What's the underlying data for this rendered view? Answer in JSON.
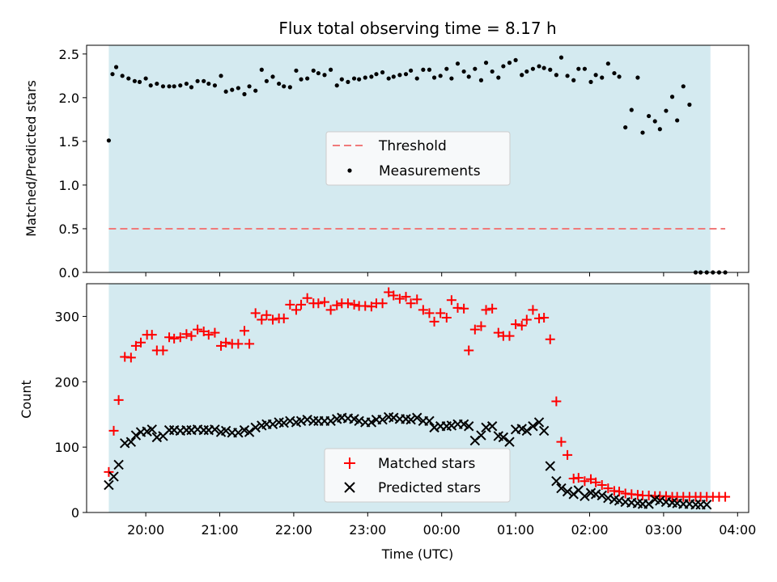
{
  "chart_data": [
    {
      "type": "scatter",
      "title": "Flux total observing time = 8.17 h",
      "ylabel": "Matched/Predicted stars",
      "ylim": [
        0,
        2.6
      ],
      "yticks": [
        0.0,
        0.5,
        1.0,
        1.5,
        2.0,
        2.5
      ],
      "ytick_labels": [
        "0.0",
        "0.5",
        "1.0",
        "1.5",
        "2.0",
        "2.5"
      ],
      "shaded_interval": [
        "19:30",
        "03:38"
      ],
      "shade_color": "#d4eaf0",
      "legend_position": "center",
      "legend": [
        {
          "label": "Threshold",
          "style": "dashed-line",
          "color": "#f07a7a"
        },
        {
          "label": "Measurements",
          "style": "dot",
          "color": "#000000"
        }
      ],
      "threshold": 0.5,
      "series": [
        {
          "name": "Measurements",
          "color": "#000000",
          "x": [
            "19:30",
            "19:33",
            "19:36",
            "19:41",
            "19:46",
            "19:51",
            "19:55",
            "20:00",
            "20:04",
            "20:09",
            "20:14",
            "20:19",
            "20:23",
            "20:28",
            "20:33",
            "20:37",
            "20:42",
            "20:47",
            "20:51",
            "20:56",
            "21:01",
            "21:05",
            "21:10",
            "21:15",
            "21:20",
            "21:24",
            "21:29",
            "21:34",
            "21:38",
            "21:43",
            "21:48",
            "21:52",
            "21:57",
            "22:02",
            "22:06",
            "22:11",
            "22:16",
            "22:20",
            "22:25",
            "22:30",
            "22:35",
            "22:39",
            "22:44",
            "22:49",
            "22:53",
            "22:58",
            "23:03",
            "23:07",
            "23:12",
            "23:17",
            "23:21",
            "23:26",
            "23:31",
            "23:35",
            "23:40",
            "23:45",
            "23:50",
            "23:54",
            "23:59",
            "00:04",
            "00:08",
            "00:13",
            "00:18",
            "00:22",
            "00:27",
            "00:32",
            "00:36",
            "00:41",
            "00:46",
            "00:50",
            "00:55",
            "01:00",
            "01:05",
            "01:09",
            "01:14",
            "01:19",
            "01:23",
            "01:28",
            "01:33",
            "01:37",
            "01:42",
            "01:47",
            "01:51",
            "01:56",
            "02:01",
            "02:05",
            "02:10",
            "02:15",
            "02:20",
            "02:24",
            "02:29",
            "02:34",
            "02:39",
            "02:43",
            "02:48",
            "02:53",
            "02:57",
            "03:02",
            "03:07",
            "03:11",
            "03:16",
            "03:21",
            "03:26",
            "03:30",
            "03:35",
            "03:40",
            "03:45",
            "03:50"
          ],
          "y": [
            1.51,
            2.27,
            2.35,
            2.25,
            2.22,
            2.19,
            2.18,
            2.22,
            2.14,
            2.16,
            2.13,
            2.13,
            2.13,
            2.14,
            2.16,
            2.12,
            2.19,
            2.19,
            2.16,
            2.14,
            2.25,
            2.07,
            2.09,
            2.11,
            2.04,
            2.13,
            2.08,
            2.32,
            2.19,
            2.24,
            2.16,
            2.13,
            2.12,
            2.31,
            2.21,
            2.22,
            2.31,
            2.28,
            2.26,
            2.32,
            2.14,
            2.21,
            2.18,
            2.22,
            2.21,
            2.23,
            2.24,
            2.27,
            2.29,
            2.22,
            2.24,
            2.26,
            2.27,
            2.31,
            2.22,
            2.32,
            2.32,
            2.23,
            2.25,
            2.33,
            2.22,
            2.39,
            2.3,
            2.24,
            2.33,
            2.2,
            2.4,
            2.3,
            2.23,
            2.36,
            2.4,
            2.43,
            2.26,
            2.3,
            2.33,
            2.36,
            2.34,
            2.32,
            2.26,
            2.46,
            2.25,
            2.2,
            2.33,
            2.33,
            2.18,
            2.26,
            2.23,
            2.39,
            2.28,
            2.24,
            1.66,
            1.86,
            2.23,
            1.6,
            1.79,
            1.73,
            1.64,
            1.85,
            2.01,
            1.74,
            2.13,
            1.92,
            0.0,
            0.0,
            0.0,
            0.0,
            0.0,
            0.0
          ]
        }
      ]
    },
    {
      "type": "scatter",
      "xlabel": "Time (UTC)",
      "ylabel": "Count",
      "ylim": [
        0,
        350
      ],
      "yticks": [
        0,
        100,
        200,
        300
      ],
      "ytick_labels": [
        "0",
        "100",
        "200",
        "300"
      ],
      "xticks": [
        "20:00",
        "21:00",
        "22:00",
        "23:00",
        "00:00",
        "01:00",
        "02:00",
        "03:00",
        "04:00"
      ],
      "shaded_interval": [
        "19:30",
        "03:38"
      ],
      "shade_color": "#d4eaf0",
      "legend_position": "lower center",
      "legend": [
        {
          "label": "Matched stars",
          "style": "plus",
          "color": "#ff0000"
        },
        {
          "label": "Predicted stars",
          "style": "x",
          "color": "#000000"
        }
      ],
      "series": [
        {
          "name": "Matched stars",
          "color": "#ff0000",
          "x": [
            "19:30",
            "19:34",
            "19:38",
            "19:43",
            "19:48",
            "19:52",
            "19:56",
            "20:01",
            "20:05",
            "20:09",
            "20:14",
            "20:19",
            "20:23",
            "20:28",
            "20:33",
            "20:37",
            "20:42",
            "20:47",
            "20:51",
            "20:56",
            "21:01",
            "21:05",
            "21:10",
            "21:15",
            "21:20",
            "21:24",
            "21:29",
            "21:34",
            "21:38",
            "21:43",
            "21:48",
            "21:52",
            "21:57",
            "22:02",
            "22:06",
            "22:11",
            "22:16",
            "22:20",
            "22:25",
            "22:30",
            "22:35",
            "22:39",
            "22:44",
            "22:49",
            "22:53",
            "22:58",
            "23:03",
            "23:07",
            "23:12",
            "23:17",
            "23:21",
            "23:26",
            "23:31",
            "23:35",
            "23:40",
            "23:45",
            "23:50",
            "23:54",
            "23:59",
            "00:04",
            "00:08",
            "00:13",
            "00:18",
            "00:22",
            "00:27",
            "00:32",
            "00:36",
            "00:41",
            "00:46",
            "00:50",
            "00:55",
            "01:00",
            "01:05",
            "01:09",
            "01:14",
            "01:19",
            "01:23",
            "01:28",
            "01:33",
            "01:37",
            "01:42",
            "01:47",
            "01:51",
            "01:56",
            "02:01",
            "02:05",
            "02:10",
            "02:15",
            "02:20",
            "02:24",
            "02:29",
            "02:34",
            "02:39",
            "02:43",
            "02:48",
            "02:53",
            "02:57",
            "03:02",
            "03:07",
            "03:11",
            "03:16",
            "03:21",
            "03:26",
            "03:30",
            "03:35",
            "03:40",
            "03:45",
            "03:50"
          ],
          "y": [
            62,
            125,
            172,
            238,
            237,
            255,
            260,
            272,
            272,
            248,
            248,
            268,
            266,
            268,
            273,
            270,
            280,
            277,
            272,
            275,
            255,
            260,
            258,
            258,
            278,
            258,
            305,
            295,
            302,
            295,
            297,
            297,
            318,
            310,
            318,
            328,
            320,
            320,
            322,
            310,
            317,
            320,
            320,
            318,
            316,
            316,
            315,
            320,
            320,
            337,
            332,
            327,
            330,
            320,
            326,
            310,
            305,
            292,
            305,
            298,
            325,
            313,
            312,
            248,
            280,
            285,
            310,
            312,
            275,
            270,
            270,
            288,
            286,
            295,
            310,
            297,
            298,
            265,
            170,
            108,
            88,
            52,
            53,
            48,
            51,
            46,
            42,
            37,
            33,
            32,
            29,
            28,
            27,
            26,
            26,
            25,
            25,
            25,
            24,
            24,
            24,
            24,
            24,
            24,
            24,
            24,
            24,
            24
          ]
        },
        {
          "name": "Predicted stars",
          "color": "#000000",
          "x": [
            "19:30",
            "19:34",
            "19:38",
            "19:43",
            "19:48",
            "19:52",
            "19:56",
            "20:01",
            "20:05",
            "20:09",
            "20:14",
            "20:19",
            "20:23",
            "20:28",
            "20:33",
            "20:37",
            "20:42",
            "20:47",
            "20:51",
            "20:56",
            "21:01",
            "21:05",
            "21:10",
            "21:15",
            "21:20",
            "21:24",
            "21:29",
            "21:34",
            "21:38",
            "21:43",
            "21:48",
            "21:52",
            "21:57",
            "22:02",
            "22:06",
            "22:11",
            "22:16",
            "22:20",
            "22:25",
            "22:30",
            "22:35",
            "22:39",
            "22:44",
            "22:49",
            "22:53",
            "22:58",
            "23:03",
            "23:07",
            "23:12",
            "23:17",
            "23:21",
            "23:26",
            "23:31",
            "23:35",
            "23:40",
            "23:45",
            "23:50",
            "23:54",
            "23:59",
            "00:04",
            "00:08",
            "00:13",
            "00:18",
            "00:22",
            "00:27",
            "00:32",
            "00:36",
            "00:41",
            "00:46",
            "00:50",
            "00:55",
            "01:00",
            "01:05",
            "01:09",
            "01:14",
            "01:19",
            "01:23",
            "01:28",
            "01:33",
            "01:37",
            "01:42",
            "01:47",
            "01:51",
            "01:56",
            "02:01",
            "02:05",
            "02:10",
            "02:15",
            "02:20",
            "02:24",
            "02:29",
            "02:34",
            "02:39",
            "02:43",
            "02:48",
            "02:53",
            "02:57",
            "03:02",
            "03:07",
            "03:11",
            "03:16",
            "03:21",
            "03:26",
            "03:30",
            "03:35"
          ],
          "y": [
            42,
            55,
            73,
            106,
            108,
            118,
            123,
            124,
            127,
            115,
            117,
            126,
            126,
            125,
            126,
            126,
            127,
            126,
            126,
            127,
            123,
            125,
            122,
            122,
            126,
            123,
            130,
            133,
            135,
            135,
            138,
            137,
            140,
            138,
            140,
            142,
            140,
            140,
            140,
            140,
            143,
            145,
            144,
            143,
            140,
            138,
            138,
            142,
            142,
            146,
            145,
            143,
            143,
            142,
            145,
            140,
            140,
            130,
            132,
            132,
            133,
            135,
            135,
            132,
            110,
            118,
            130,
            132,
            117,
            115,
            108,
            127,
            128,
            125,
            132,
            138,
            125,
            71,
            48,
            37,
            32,
            28,
            34,
            25,
            30,
            28,
            26,
            22,
            20,
            18,
            16,
            15,
            14,
            13,
            13,
            20,
            18,
            16,
            15,
            14,
            13,
            13,
            12,
            12,
            12
          ]
        }
      ]
    }
  ]
}
